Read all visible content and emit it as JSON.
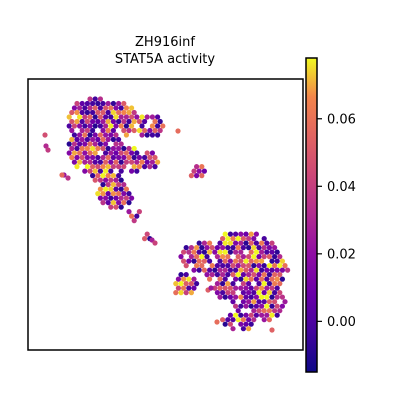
{
  "chart_data": {
    "type": "scatter",
    "title_lines": [
      "ZH916inf",
      "STAT5A activity"
    ],
    "xlabel": "",
    "ylabel": "",
    "colorbar": {
      "colormap": "plasma",
      "range": [
        -0.015,
        0.078
      ],
      "ticks": [
        0.0,
        0.02,
        0.04,
        0.06
      ],
      "tick_labels": [
        "0.00",
        "0.02",
        "0.04",
        "0.06"
      ]
    },
    "axes_ticks_visible": false,
    "grid": false,
    "spot_groups": [
      {
        "name": "upper-left tissue cluster",
        "x_range": [
          0.12,
          0.55
        ],
        "y_range": [
          0.55,
          0.96
        ],
        "value_mean": 0.035,
        "value_range": [
          -0.01,
          0.07
        ]
      },
      {
        "name": "lower-right tissue cluster",
        "x_range": [
          0.52,
          0.94
        ],
        "y_range": [
          0.05,
          0.45
        ],
        "value_mean": 0.038,
        "value_range": [
          -0.01,
          0.075
        ]
      }
    ]
  }
}
